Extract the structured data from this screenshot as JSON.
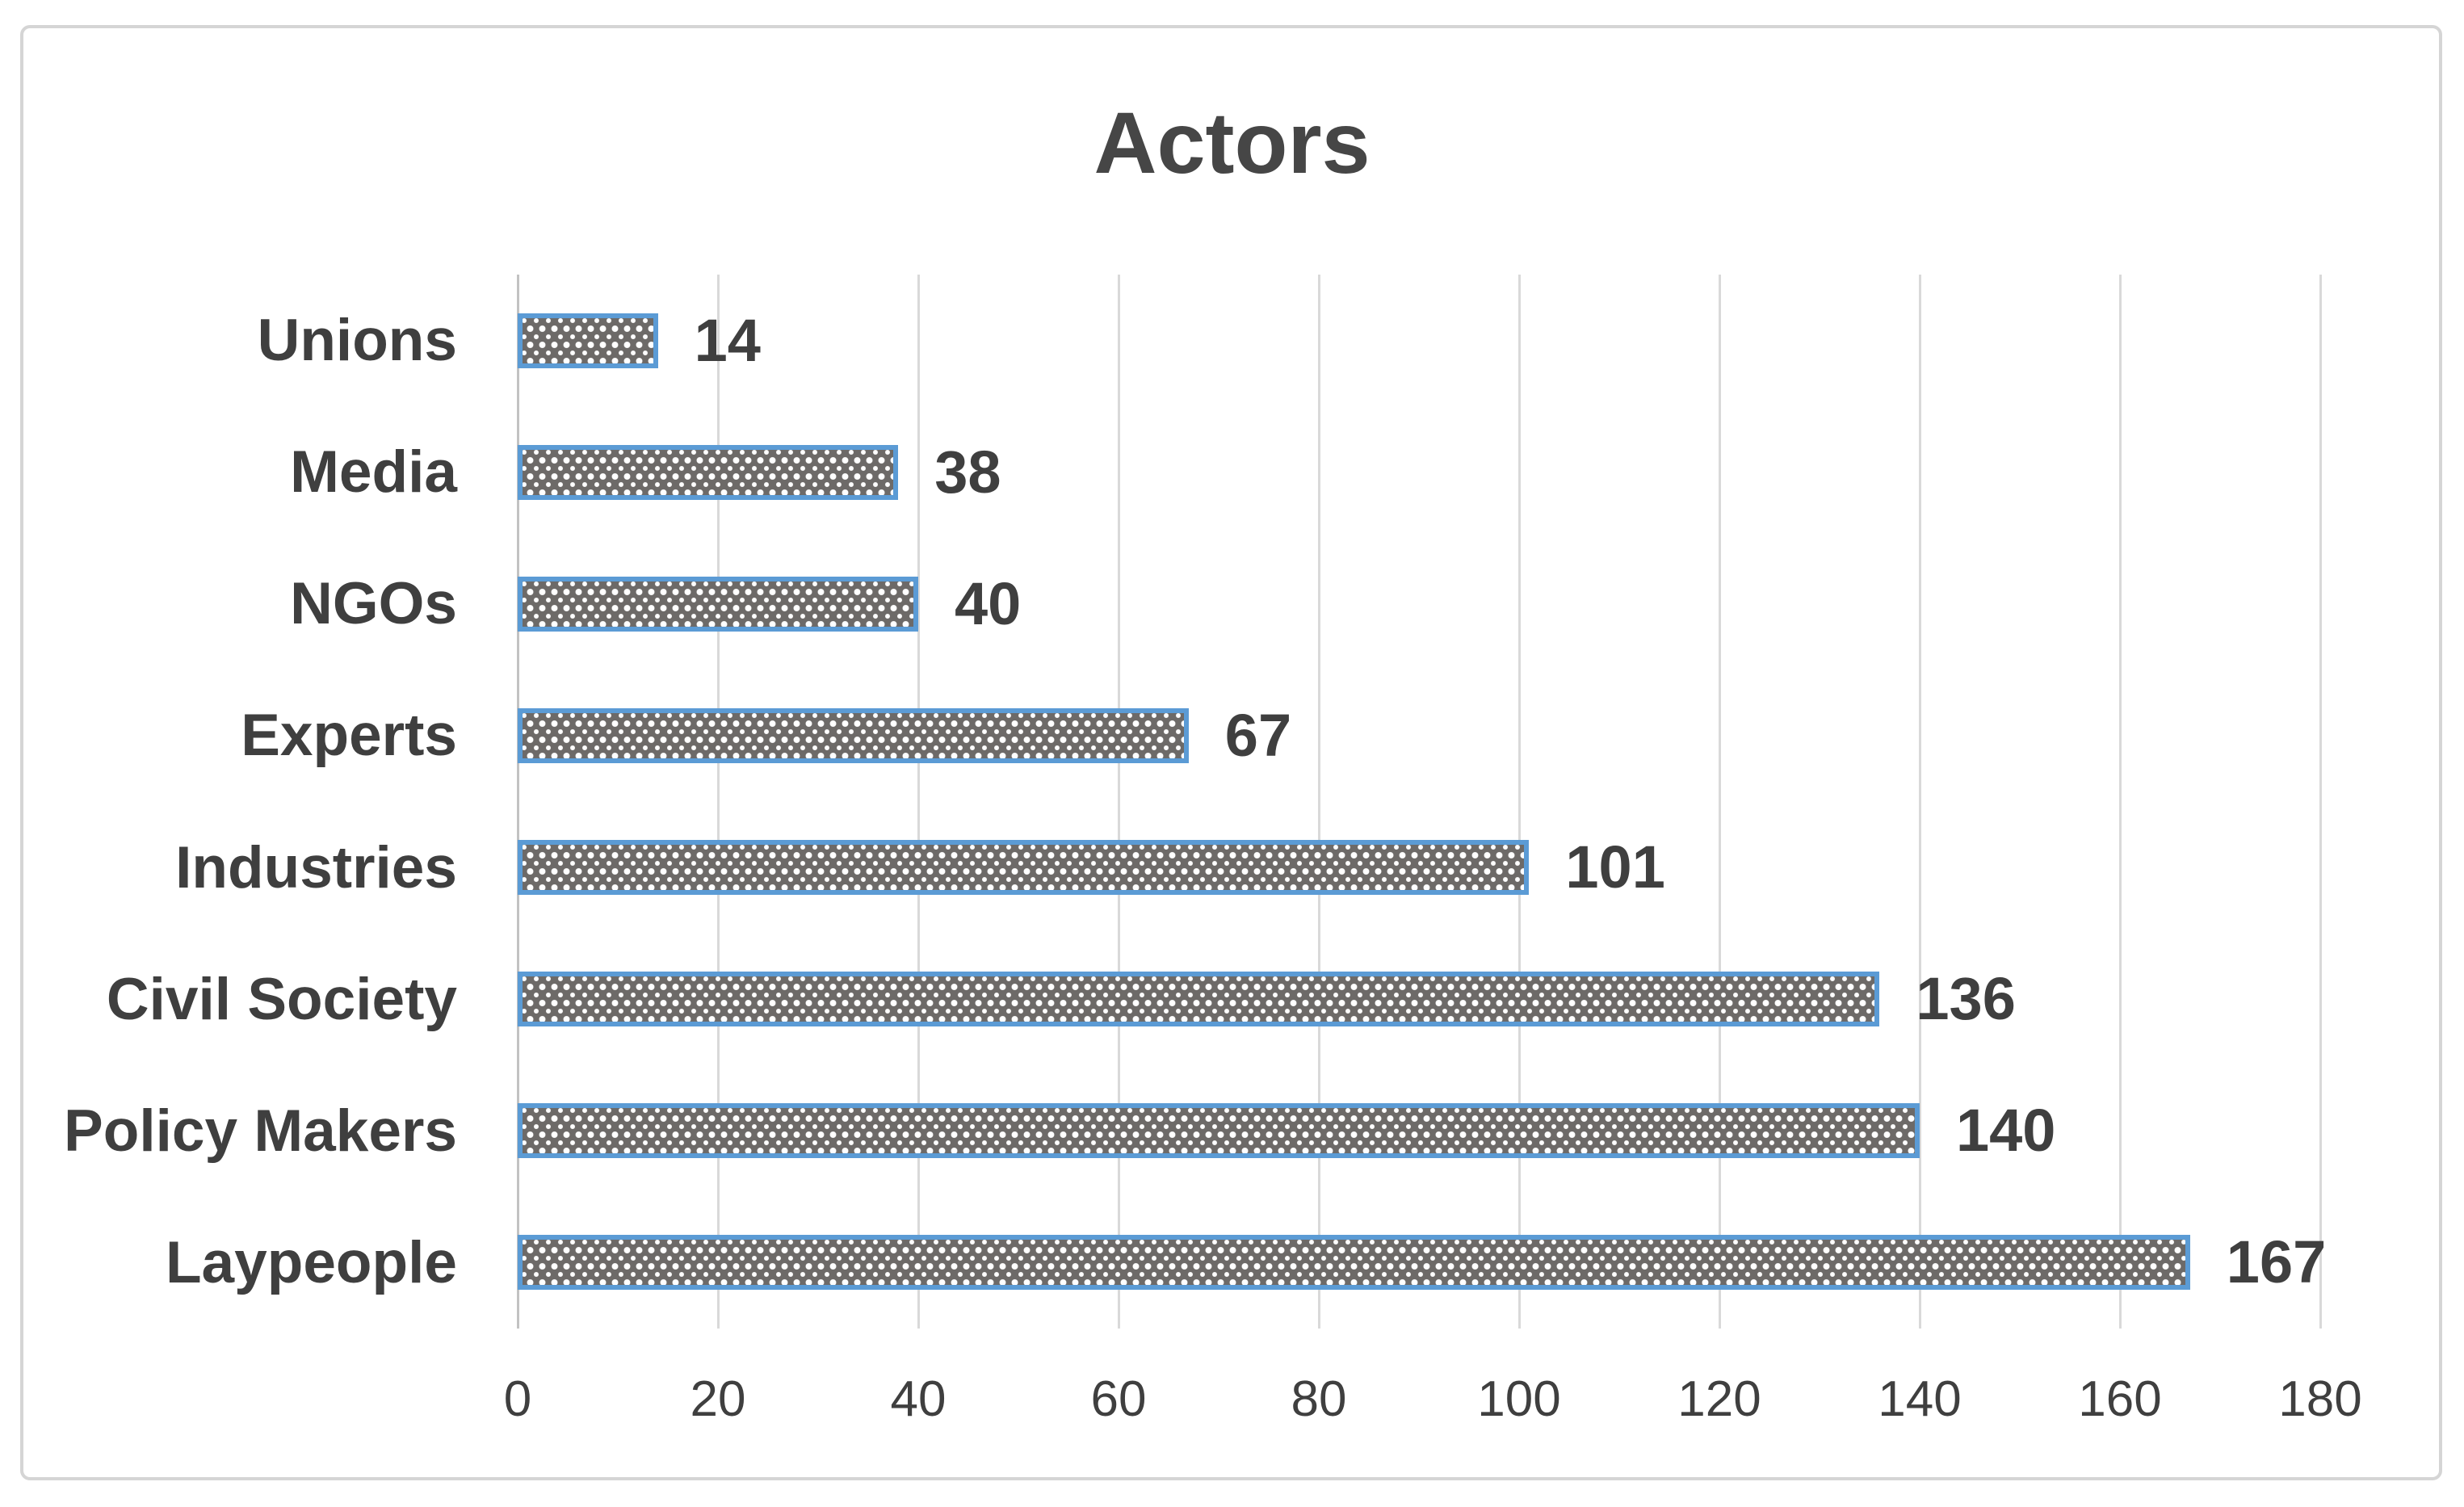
{
  "chart_data": {
    "type": "bar",
    "orientation": "horizontal",
    "title": "Actors",
    "xlabel": "",
    "ylabel": "",
    "categories": [
      "Unions",
      "Media",
      "NGOs",
      "Experts",
      "Industries",
      "Civil Society",
      "Policy Makers",
      "Laypeople"
    ],
    "values": [
      14,
      38,
      40,
      67,
      101,
      136,
      140,
      167
    ],
    "data_labels": [
      "14",
      "38",
      "40",
      "67",
      "101",
      "136",
      "140",
      "167"
    ],
    "xlim": [
      0,
      180
    ],
    "tick_step": 20,
    "tick_labels": [
      "0",
      "20",
      "40",
      "60",
      "80",
      "100",
      "120",
      "140",
      "160",
      "180"
    ],
    "grid": "vertical",
    "legend": "none",
    "bar_pattern": "white-dotted",
    "colors": {
      "bar_border": "#5b9bd5",
      "bar_fill": "#6d6a68",
      "bar_dot": "#ffffff",
      "gridline": "#d9d9d9",
      "axis_line": "#c2c2c2",
      "text": "#3f3f3f",
      "title_text": "#464646",
      "chart_border": "#d5d5d5",
      "background": "#ffffff"
    }
  }
}
